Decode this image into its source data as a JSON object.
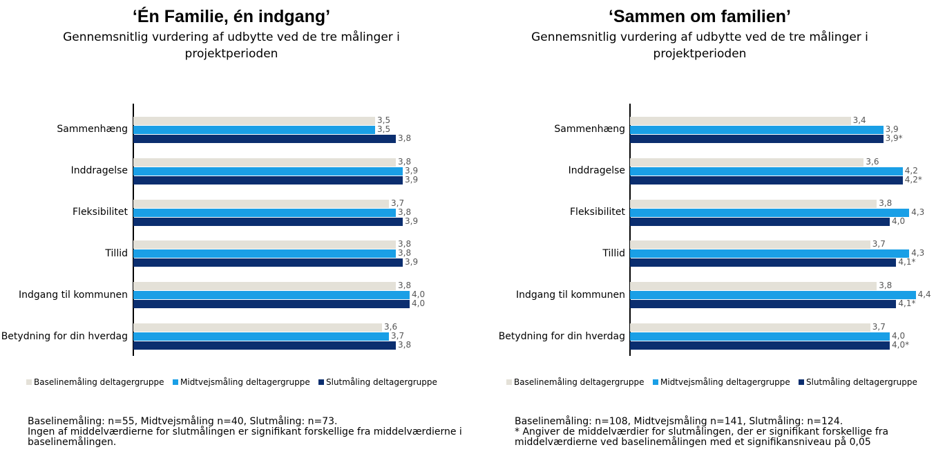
{
  "chart_data": [
    {
      "type": "bar",
      "orientation": "horizontal",
      "title": "‘Én Familie, én indgang’",
      "subtitle": "Gennemsnitlig vurdering af udbytte ved de tre målinger i projektperioden",
      "categories": [
        "Sammenhæng",
        "Inddragelse",
        "Fleksibilitet",
        "Tillid",
        "Indgang til kommunen",
        "Betydning for din hverdag"
      ],
      "series": [
        {
          "name": "Baselinemåling deltagergruppe",
          "color": "#e4e1d8",
          "values": [
            3.5,
            3.8,
            3.7,
            3.8,
            3.8,
            3.6
          ],
          "value_labels": [
            "3,5",
            "3,8",
            "3,7",
            "3,8",
            "3,8",
            "3,6"
          ]
        },
        {
          "name": "Midtvejsmåling deltagergruppe",
          "color": "#1a9fe6",
          "values": [
            3.5,
            3.9,
            3.8,
            3.8,
            4.0,
            3.7
          ],
          "value_labels": [
            "3,5",
            "3,9",
            "3,8",
            "3,8",
            "4,0",
            "3,7"
          ]
        },
        {
          "name": "Slutmåling deltagergruppe",
          "color": "#0b2e6f",
          "values": [
            3.8,
            3.9,
            3.9,
            3.9,
            4.0,
            3.8
          ],
          "value_labels": [
            "3,8",
            "3,9",
            "3,9",
            "3,9",
            "4,0",
            "3,8"
          ]
        }
      ],
      "xlim": [
        0,
        5
      ],
      "notes": [
        "Baselinemåling: n=55, Midtvejsmåling n=40, Slutmåling: n=73.",
        "Ingen af middelværdierne for slutmålingen er signifikant forskellige fra middelværdierne i baselinemålingen."
      ]
    },
    {
      "type": "bar",
      "orientation": "horizontal",
      "title": "‘Sammen om familien’",
      "subtitle": "Gennemsnitlig vurdering af udbytte ved de tre målinger i projektperioden",
      "categories": [
        "Sammenhæng",
        "Inddragelse",
        "Fleksibilitet",
        "Tillid",
        "Indgang til kommunen",
        "Betydning for din hverdag"
      ],
      "series": [
        {
          "name": "Baselinemåling deltagergruppe",
          "color": "#e4e1d8",
          "values": [
            3.4,
            3.6,
            3.8,
            3.7,
            3.8,
            3.7
          ],
          "value_labels": [
            "3,4",
            "3,6",
            "3,8",
            "3,7",
            "3,8",
            "3,7"
          ]
        },
        {
          "name": "Midtvejsmåling deltagergruppe",
          "color": "#1a9fe6",
          "values": [
            3.9,
            4.2,
            4.3,
            4.3,
            4.4,
            4.0
          ],
          "value_labels": [
            "3,9",
            "4,2",
            "4,3",
            "4,3",
            "4,4",
            "4,0"
          ]
        },
        {
          "name": "Slutmåling deltagergruppe",
          "color": "#0b2e6f",
          "values": [
            3.9,
            4.2,
            4.0,
            4.1,
            4.1,
            4.0
          ],
          "value_labels": [
            "3,9*",
            "4,2*",
            "4,0",
            "4,1*",
            "4,1*",
            "4,0*"
          ]
        }
      ],
      "xlim": [
        0,
        5
      ],
      "notes": [
        "Baselinemåling: n=108, Midtvejsmåling n=141, Slutmåling: n=124.",
        "* Angiver de middelværdier for slutmålingen, der er signifikant forskellige fra middelværdierne ved baselinemålingen med et signifikansniveau på 0,05"
      ]
    }
  ]
}
